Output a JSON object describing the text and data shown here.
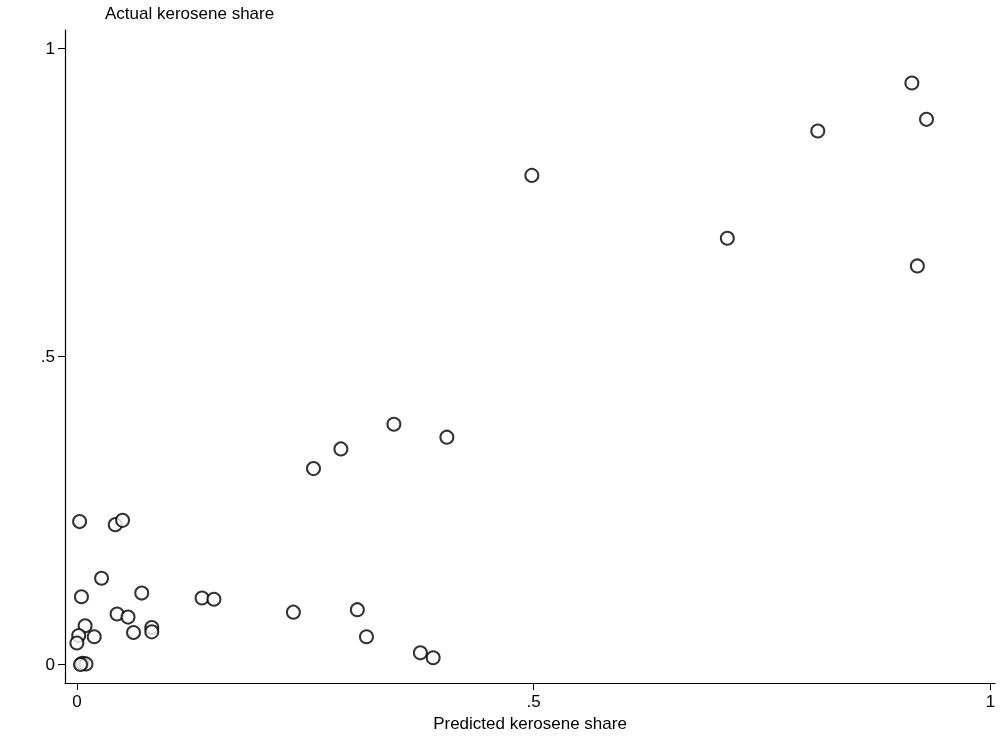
{
  "chart_data": {
    "type": "scatter",
    "xlabel": "Predicted kerosene share",
    "ylabel": "Actual kerosene share",
    "x": [
      0.914,
      0.811,
      0.93,
      0.498,
      0.712,
      0.92,
      0.347,
      0.405,
      0.289,
      0.259,
      0.003,
      0.042,
      0.05,
      0.027,
      0.005,
      0.071,
      0.137,
      0.15,
      0.044,
      0.056,
      0.009,
      0.082,
      0.082,
      0.062,
      0.019,
      0.002,
      0.0,
      0.006,
      0.01,
      0.004,
      0.237,
      0.307,
      0.317,
      0.376,
      0.39
    ],
    "values": [
      0.944,
      0.866,
      0.885,
      0.794,
      0.692,
      0.647,
      0.39,
      0.369,
      0.35,
      0.318,
      0.232,
      0.227,
      0.234,
      0.14,
      0.11,
      0.116,
      0.108,
      0.106,
      0.082,
      0.077,
      0.063,
      0.06,
      0.053,
      0.052,
      0.045,
      0.047,
      0.035,
      0.002,
      0.001,
      0.0,
      0.085,
      0.089,
      0.045,
      0.019,
      0.011
    ],
    "color": "#000000",
    "marker": "circle",
    "grid": false,
    "xlim": [
      -0.013,
      1.005
    ],
    "ylim": [
      -0.03,
      1.03
    ],
    "xticks": [
      0,
      {
        "value": 0.5,
        "label": ".5"
      },
      1
    ],
    "yticks": [
      0,
      {
        "value": 0.5,
        "label": ".5"
      },
      1
    ]
  }
}
